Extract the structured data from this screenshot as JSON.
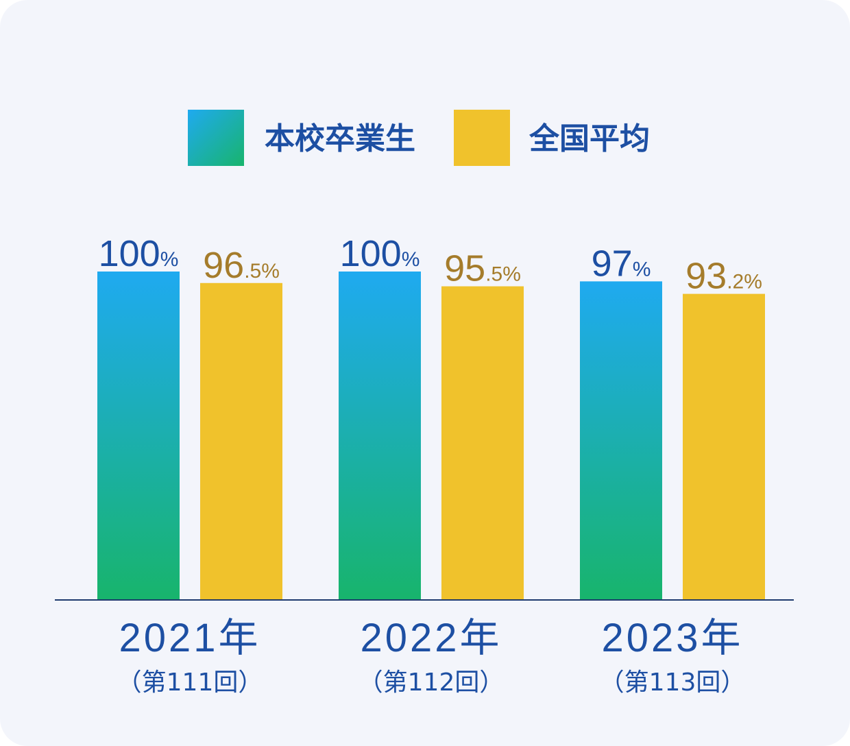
{
  "chart_data": {
    "type": "bar",
    "categories": [
      "2021年",
      "2022年",
      "2023年"
    ],
    "category_sublabels": [
      "（第111回）",
      "（第112回）",
      "（第113回）"
    ],
    "series": [
      {
        "name": "本校卒業生",
        "values": [
          100,
          100,
          97
        ],
        "labels": [
          {
            "main": "100",
            "suffix": "%"
          },
          {
            "main": "100",
            "suffix": "%"
          },
          {
            "main": "97",
            "suffix": "%"
          }
        ],
        "color_top": "#1faaf0",
        "color_bottom": "#18b46c"
      },
      {
        "name": "全国平均",
        "values": [
          96.5,
          95.5,
          93.2
        ],
        "labels": [
          {
            "main": "96",
            "suffix": ".5%"
          },
          {
            "main": "95",
            "suffix": ".5%"
          },
          {
            "main": "93",
            "suffix": ".2%"
          }
        ],
        "color": "#f0c22c"
      }
    ],
    "legend_position": "top-center",
    "ylim": [
      0,
      100
    ],
    "grid": false,
    "colors": {
      "text_primary": "#1d4fa3",
      "text_national": "#a57c2b",
      "axis": "#1e3a6e"
    }
  }
}
